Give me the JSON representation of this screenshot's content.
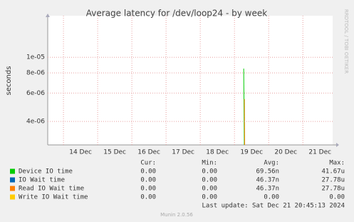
{
  "chart_data": {
    "type": "line",
    "title": "Average latency for /dev/loop24 - by week",
    "y_label": "seconds",
    "side_text": "RRDTOOL / TOBI OETIKER",
    "log_scale": true,
    "grid": true,
    "ylim": [
      2.86e-06,
      1.81e-05
    ],
    "yticks": [
      {
        "value": 1e-05,
        "label": "1e-05"
      },
      {
        "value": 8e-06,
        "label": "8e-06"
      },
      {
        "value": 6e-06,
        "label": "6e-06"
      },
      {
        "value": 4e-06,
        "label": "4e-06"
      }
    ],
    "xlim": [
      13.54,
      21.87
    ],
    "xticks": [
      {
        "value": 14.5,
        "label": "14 Dec"
      },
      {
        "value": 15.5,
        "label": "15 Dec"
      },
      {
        "value": 16.5,
        "label": "16 Dec"
      },
      {
        "value": 17.5,
        "label": "17 Dec"
      },
      {
        "value": 18.5,
        "label": "18 Dec"
      },
      {
        "value": 19.5,
        "label": "19 Dec"
      },
      {
        "value": 20.5,
        "label": "20 Dec"
      },
      {
        "value": 21.5,
        "label": "21 Dec"
      }
    ],
    "xgrid": [
      14,
      15,
      16,
      17,
      18,
      19,
      20,
      21
    ],
    "legend_headers": [
      "Cur:",
      "Min:",
      "Avg:",
      "Max:"
    ],
    "series": [
      {
        "name": "Device IO time",
        "color": "#00cc00",
        "x": [
          19.27,
          19.29
        ],
        "values": [
          8.5e-06,
          2.5e-06
        ],
        "cur": "0.00",
        "min": "0.00",
        "avg": "69.56n",
        "max": "41.67u"
      },
      {
        "name": "IO Wait time",
        "color": "#0066b3",
        "x": [],
        "values": [],
        "cur": "0.00",
        "min": "0.00",
        "avg": "46.37n",
        "max": "27.78u"
      },
      {
        "name": "Read IO Wait time",
        "color": "#ff8000",
        "x": [
          19.29,
          19.3
        ],
        "values": [
          5.5e-06,
          2.5e-06
        ],
        "cur": "0.00",
        "min": "0.00",
        "avg": "46.37n",
        "max": "27.78u"
      },
      {
        "name": "Write IO Wait time",
        "color": "#ffcc00",
        "x": [],
        "values": [],
        "cur": "0.00",
        "min": "0.00",
        "avg": "0.00",
        "max": "0.00"
      }
    ],
    "last_update": "Last update: Sat Dec 21 20:45:13 2024",
    "footer": "Munin 2.0.56"
  }
}
